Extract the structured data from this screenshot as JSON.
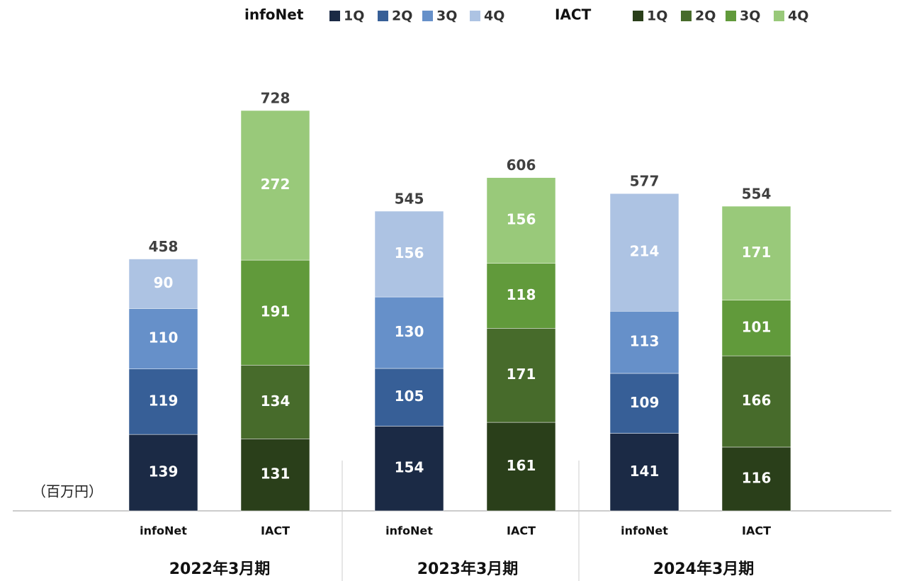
{
  "chart_data": {
    "type": "stacked_bar",
    "unit_label": "（百万円）",
    "groups": [
      "2022年3月期",
      "2023年3月期",
      "2024年3月期"
    ],
    "stacks": [
      {
        "name": "infoNet",
        "totals": [
          458,
          545,
          577
        ],
        "series": [
          {
            "name": "1Q",
            "color": "#1b2a45",
            "values": [
              139,
              154,
              141
            ]
          },
          {
            "name": "2Q",
            "color": "#375f97",
            "values": [
              119,
              105,
              109
            ]
          },
          {
            "name": "3Q",
            "color": "#6690c9",
            "values": [
              110,
              130,
              113
            ]
          },
          {
            "name": "4Q",
            "color": "#adc3e3",
            "values": [
              90,
              156,
              214
            ]
          }
        ]
      },
      {
        "name": "IACT",
        "totals": [
          728,
          606,
          554
        ],
        "series": [
          {
            "name": "1Q",
            "color": "#2a3f1a",
            "values": [
              131,
              161,
              116
            ]
          },
          {
            "name": "2Q",
            "color": "#476b2b",
            "values": [
              134,
              171,
              166
            ]
          },
          {
            "name": "3Q",
            "color": "#619a3b",
            "values": [
              191,
              118,
              101
            ]
          },
          {
            "name": "4Q",
            "color": "#99c97a",
            "values": [
              272,
              156,
              171
            ]
          }
        ]
      }
    ]
  }
}
